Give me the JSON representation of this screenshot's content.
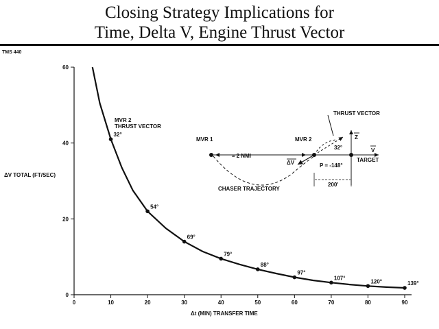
{
  "title_line1": "Closing Strategy Implications for",
  "title_line2": "Time, Delta V, Engine Thrust Vector",
  "chart_code": "TMS 440",
  "chart_data": {
    "type": "line",
    "xlabel": "Δt (MIN) TRANSFER TIME",
    "ylabel": "ΔV TOTAL (FT/SEC)",
    "xlim": [
      0,
      90
    ],
    "ylim": [
      0,
      60
    ],
    "x_ticks": [
      "0",
      "10",
      "20",
      "30",
      "40",
      "50",
      "60",
      "70",
      "80",
      "90"
    ],
    "y_ticks": [
      "0",
      "20",
      "40",
      "60"
    ],
    "grid": false,
    "curve": {
      "x": [
        5,
        7,
        10,
        13,
        16,
        20,
        25,
        30,
        35,
        40,
        45,
        50,
        55,
        60,
        65,
        70,
        75,
        80,
        85,
        90
      ],
      "y": [
        60,
        50.5,
        41,
        33.5,
        27.5,
        22,
        17.5,
        14,
        11.4,
        9.5,
        8,
        6.7,
        5.6,
        4.6,
        3.8,
        3.2,
        2.7,
        2.3,
        2.0,
        1.8
      ]
    },
    "points": [
      {
        "x": 10,
        "y": 41,
        "label": "32°"
      },
      {
        "x": 20,
        "y": 22,
        "label": "54°"
      },
      {
        "x": 30,
        "y": 14,
        "label": "69°"
      },
      {
        "x": 40,
        "y": 9.5,
        "label": "79°"
      },
      {
        "x": 50,
        "y": 6.7,
        "label": "88°"
      },
      {
        "x": 60,
        "y": 4.6,
        "label": "97°"
      },
      {
        "x": 70,
        "y": 3.2,
        "label": "107°"
      },
      {
        "x": 80,
        "y": 2.3,
        "label": "120°"
      },
      {
        "x": 90,
        "y": 1.8,
        "label": "139°"
      }
    ],
    "annotations": [
      "MVR 2",
      "THRUST VECTOR"
    ]
  },
  "inset": {
    "mvr1": "MVR 1",
    "mvr2": "MVR 2",
    "distance": "≈ 2 NMI",
    "thrust_vector": "THRUST VECTOR",
    "angle": "32°",
    "delta_v": "ΔV",
    "p_angle": "P = -148°",
    "z_axis": "Z",
    "v_axis": "V",
    "target": "TARGET",
    "chaser_trajectory": "CHASER TRAJECTORY",
    "range": "200'"
  }
}
